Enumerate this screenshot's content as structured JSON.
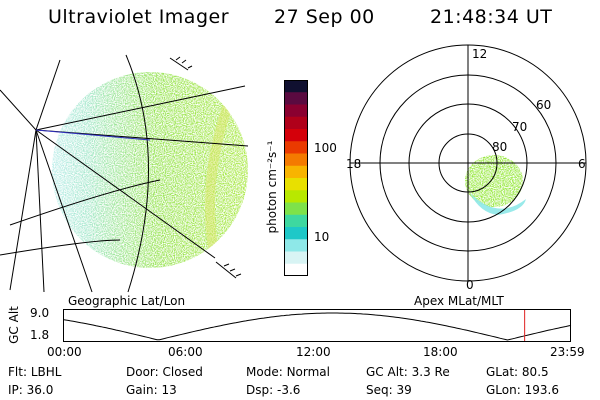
{
  "header": {
    "title": "Ultraviolet Imager",
    "date": "27 Sep 00",
    "time": "21:48:34 UT"
  },
  "colorbar": {
    "label": "photon cm⁻²s⁻¹",
    "ticks": [
      "100",
      "10"
    ],
    "colors": [
      "#101030",
      "#5a0a40",
      "#8a0030",
      "#b0001a",
      "#d4000a",
      "#ea3a00",
      "#f47a00",
      "#f8b400",
      "#e8e000",
      "#b8e800",
      "#7ee24a",
      "#3ed8a0",
      "#1ec8c8",
      "#8ee8e8",
      "#d8f4f4",
      "#ffffff"
    ]
  },
  "geo_panel": {
    "label": "Geographic Lat/Lon",
    "fill_color": "#8ee62e"
  },
  "polar_panel": {
    "label": "Apex MLat/MLT",
    "hour_labels": {
      "top": "12",
      "bottom": "0",
      "left": "18",
      "right": "6"
    },
    "lat_labels": [
      "60",
      "70",
      "80"
    ]
  },
  "timeline": {
    "axis_label": "GC Alt",
    "y_ticks": [
      "9.0",
      "1.8"
    ],
    "x_ticks": [
      "00:00",
      "06:00",
      "12:00",
      "18:00",
      "23:59"
    ],
    "current_marker_color": "#e02020",
    "current_time_hours": 21.81
  },
  "info": {
    "row1": [
      {
        "key": "Flt:",
        "value": "LBHL"
      },
      {
        "key": "Door:",
        "value": "Closed"
      },
      {
        "key": "Mode:",
        "value": "Normal"
      },
      {
        "key": "GC Alt:",
        "value": "3.3 Re"
      },
      {
        "key": "GLat:",
        "value": "80.5"
      }
    ],
    "row2": [
      {
        "key": "IP:",
        "value": "36.0"
      },
      {
        "key": "Gain:",
        "value": "13"
      },
      {
        "key": "Dsp:",
        "value": "-3.6"
      },
      {
        "key": "Seq:",
        "value": "39"
      },
      {
        "key": "GLon:",
        "value": "193.6"
      }
    ]
  }
}
